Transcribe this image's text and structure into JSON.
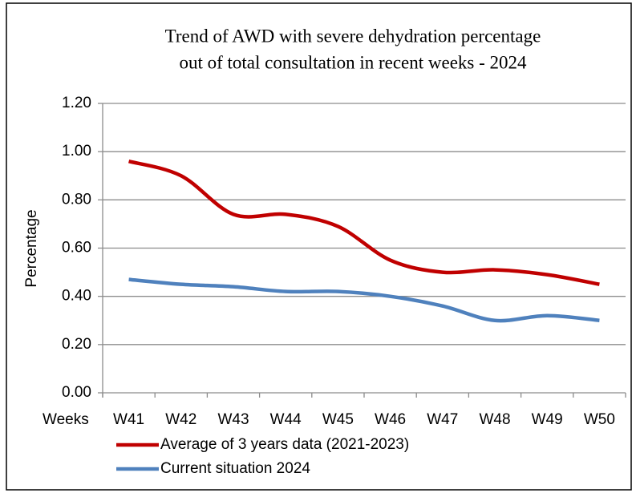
{
  "chart_data": {
    "type": "line",
    "title": [
      "Trend of AWD with severe dehydration percentage",
      "out of total consultation in recent weeks - 2024"
    ],
    "x_label": "Weeks",
    "y_label": "Percentage",
    "categories": [
      "W41",
      "W42",
      "W43",
      "W44",
      "W45",
      "W46",
      "W47",
      "W48",
      "W49",
      "W50"
    ],
    "series": [
      {
        "name": "Average of 3 years data (2021-2023)",
        "color": "#c00000",
        "smooth": true,
        "values": [
          0.96,
          0.9,
          0.74,
          0.74,
          0.69,
          0.55,
          0.5,
          0.51,
          0.49,
          0.45
        ]
      },
      {
        "name": "Current situation 2024",
        "color": "#4f81bd",
        "smooth": true,
        "values": [
          0.47,
          0.45,
          0.44,
          0.42,
          0.42,
          0.4,
          0.36,
          0.3,
          0.32,
          0.3
        ]
      }
    ],
    "ylim": [
      0,
      1.2
    ],
    "yticks": [
      {
        "value": 0,
        "label": "0.00"
      },
      {
        "value": 0.2,
        "label": "0.20"
      },
      {
        "value": 0.4,
        "label": "0.40"
      },
      {
        "value": 0.6,
        "label": "0.60"
      },
      {
        "value": 0.8,
        "label": "0.80"
      },
      {
        "value": 1.0,
        "label": "1.00"
      },
      {
        "value": 1.2,
        "label": "1.20"
      }
    ],
    "grid": true,
    "legend": "bottom"
  }
}
